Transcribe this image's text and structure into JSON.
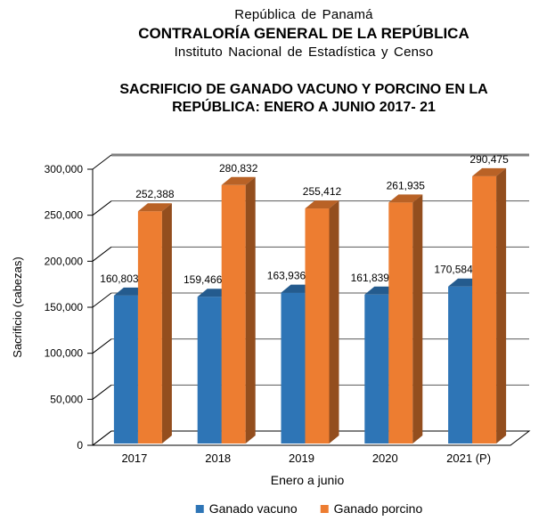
{
  "header": {
    "country": "República de Panamá",
    "institution": "CONTRALORÍA GENERAL DE LA REPÚBLICA",
    "department": "Instituto Nacional de Estadística y Censo"
  },
  "chart_data": {
    "type": "bar",
    "style_3d": true,
    "title": "SACRIFICIO DE GANADO VACUNO Y PORCINO EN LA REPÚBLICA: ENERO A JUNIO 2017- 21",
    "categories": [
      "2017",
      "2018",
      "2019",
      "2020",
      "2021 (P)"
    ],
    "series": [
      {
        "name": "Ganado vacuno",
        "color": "#2E75B6",
        "values": [
          160803,
          159466,
          163936,
          161839,
          170584
        ]
      },
      {
        "name": "Ganado porcino",
        "color": "#ED7D31",
        "values": [
          252388,
          280832,
          255412,
          261935,
          290475
        ]
      }
    ],
    "xlabel": "Enero a junio",
    "ylabel": "Sacrificio (cabezas)",
    "ylim": [
      0,
      300000
    ],
    "ytick_step": 50000,
    "ytick_labels": [
      "0",
      "50,000",
      "100,000",
      "150,000",
      "200,000",
      "250,000",
      "300,000"
    ],
    "data_labels": true,
    "grid": true,
    "legend_position": "bottom"
  }
}
